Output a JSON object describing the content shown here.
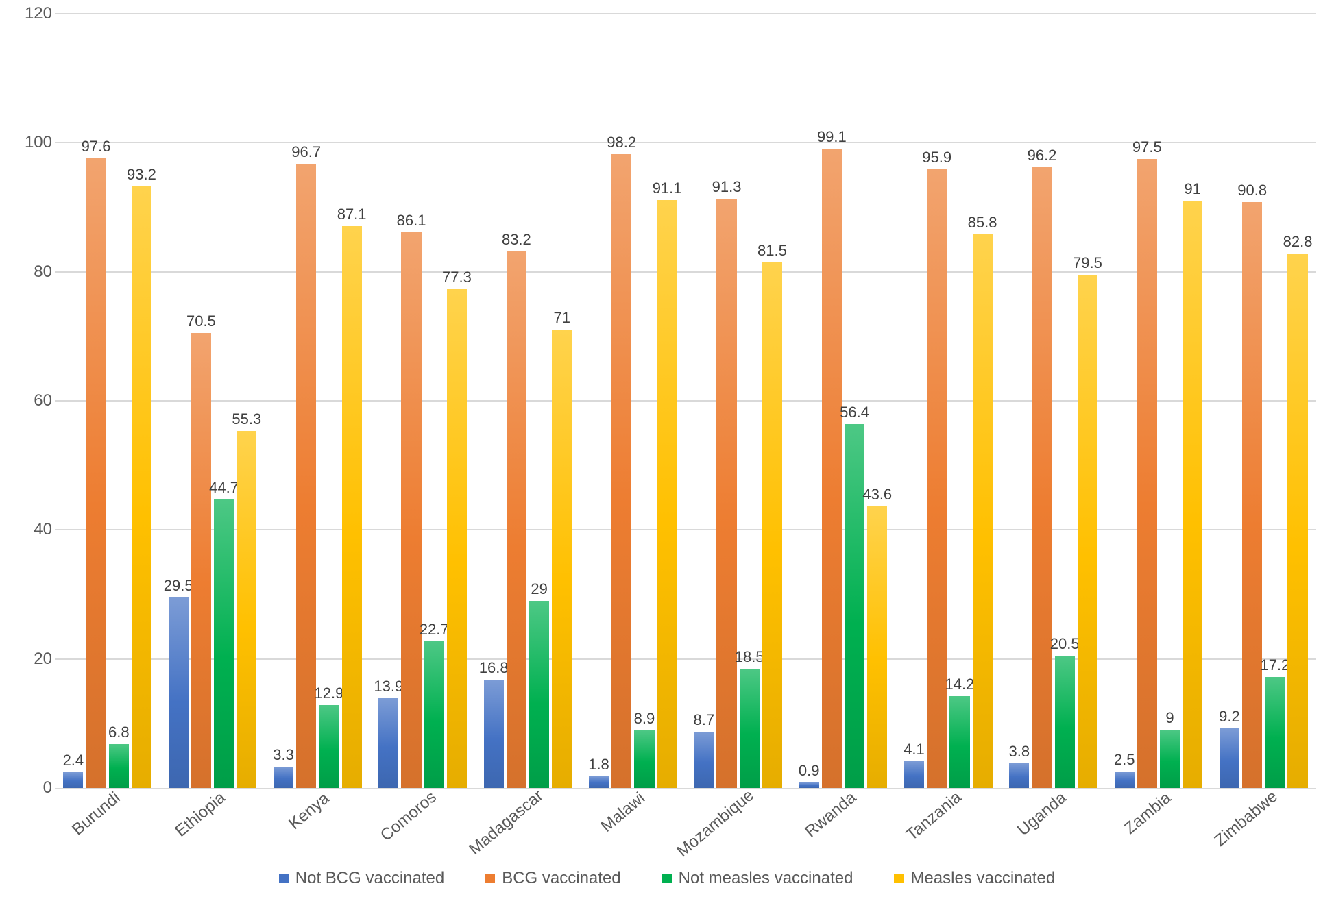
{
  "chart": {
    "type": "bar",
    "background_color": "#ffffff",
    "grid_color": "#d9d9d9",
    "text_color": "#595959",
    "label_fontsize": 24,
    "bar_label_fontsize": 22,
    "ylim": [
      0,
      120
    ],
    "ytick_step": 20,
    "yticks": [
      0,
      20,
      40,
      60,
      80,
      100,
      120
    ],
    "categories": [
      "Burundi",
      "Ethiopia",
      "Kenya",
      "Comoros",
      "Madagascar",
      "Malawi",
      "Mozambique",
      "Rwanda",
      "Tanzania",
      "Uganda",
      "Zambia",
      "Zimbabwe"
    ],
    "series": [
      {
        "name": "Not BCG vaccinated",
        "color": "#4472c4",
        "values": [
          2.4,
          29.5,
          3.3,
          13.9,
          16.8,
          1.8,
          8.7,
          0.9,
          4.1,
          3.8,
          2.5,
          9.2
        ]
      },
      {
        "name": "BCG vaccinated",
        "color": "#ed7d31",
        "values": [
          97.6,
          70.5,
          96.7,
          86.1,
          83.2,
          98.2,
          91.3,
          99.1,
          95.9,
          96.2,
          97.5,
          90.8
        ]
      },
      {
        "name": "Not measles vaccinated",
        "color": "#00b050",
        "values": [
          6.8,
          44.7,
          12.9,
          22.7,
          29,
          8.9,
          18.5,
          56.4,
          14.2,
          20.5,
          9,
          17.2
        ]
      },
      {
        "name": "Measles vaccinated",
        "color": "#ffc000",
        "values": [
          93.2,
          55.3,
          87.1,
          77.3,
          71,
          91.1,
          81.5,
          43.6,
          85.8,
          79.5,
          91,
          82.8
        ]
      }
    ],
    "xaxis_label_rotation_deg": -40,
    "legend_position": "bottom"
  }
}
